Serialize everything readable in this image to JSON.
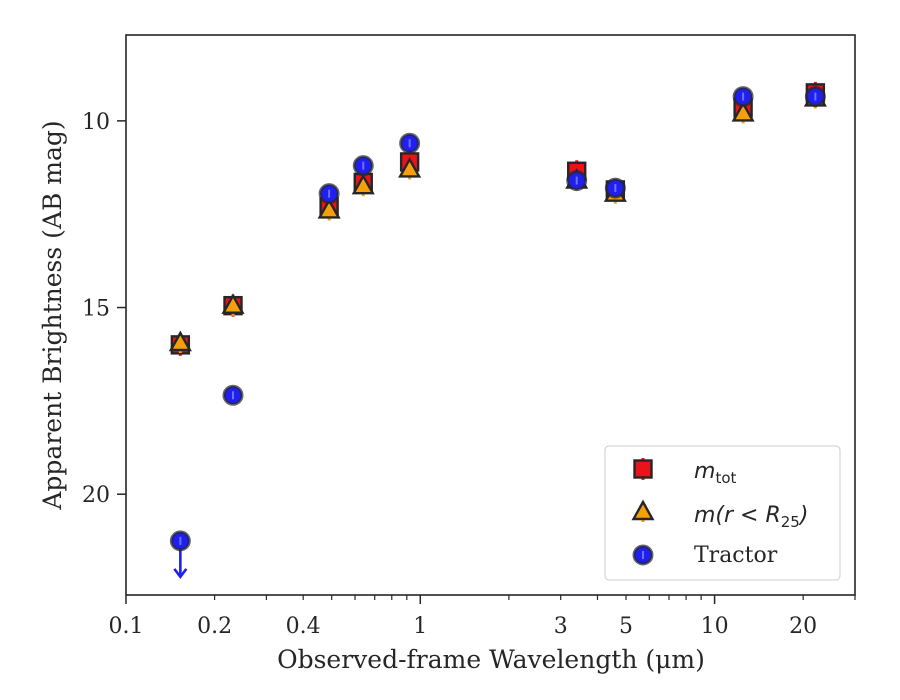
{
  "chart_data": {
    "type": "scatter",
    "xlabel": "Observed-frame Wavelength (μm)",
    "ylabel": "Apparent Brightness (AB mag)",
    "x_scale": "log",
    "xlim": [
      0.1,
      30
    ],
    "ylim": [
      22.7,
      7.7
    ],
    "y_inverted": true,
    "grid": false,
    "legend_position": "lower right",
    "x_tick_labels": [
      {
        "value": 0.1,
        "label": "0.1"
      },
      {
        "value": 0.2,
        "label": "0.2"
      },
      {
        "value": 0.4,
        "label": "0.4"
      },
      {
        "value": 1,
        "label": "1"
      },
      {
        "value": 3,
        "label": "3"
      },
      {
        "value": 5,
        "label": "5"
      },
      {
        "value": 10,
        "label": "10"
      },
      {
        "value": 20,
        "label": "20"
      }
    ],
    "y_tick_labels": [
      {
        "value": 10,
        "label": "10"
      },
      {
        "value": 15,
        "label": "15"
      },
      {
        "value": 20,
        "label": "20"
      }
    ],
    "series": [
      {
        "name": "m_tot",
        "marker": "square",
        "color": "#e8141a",
        "x": [
          0.153,
          0.231,
          0.49,
          0.64,
          0.92,
          3.4,
          4.6,
          12.5,
          22.0
        ],
        "y": [
          16.0,
          14.95,
          12.3,
          11.65,
          11.1,
          11.35,
          11.85,
          9.65,
          9.25
        ],
        "upper_limit": [
          false,
          false,
          false,
          false,
          false,
          false,
          false,
          false,
          false
        ]
      },
      {
        "name": "m(r < R25)",
        "marker": "triangle",
        "color": "#f5a00a",
        "x": [
          0.153,
          0.231,
          0.49,
          0.64,
          0.92,
          3.4,
          4.6,
          12.5,
          22.0
        ],
        "y": [
          15.95,
          14.95,
          12.4,
          11.75,
          11.3,
          11.6,
          11.95,
          9.8,
          9.4
        ],
        "upper_limit": [
          false,
          false,
          false,
          false,
          false,
          false,
          false,
          false,
          false
        ]
      },
      {
        "name": "Tractor",
        "marker": "circle",
        "color": "#1f1ff0",
        "x": [
          0.153,
          0.231,
          0.49,
          0.64,
          0.92,
          3.4,
          4.6,
          12.5,
          22.0
        ],
        "y": [
          21.25,
          17.35,
          11.95,
          11.2,
          10.6,
          11.6,
          11.8,
          9.35,
          9.35
        ],
        "upper_limit": [
          true,
          false,
          false,
          false,
          false,
          false,
          false,
          false,
          false
        ]
      }
    ],
    "legend": {
      "tot_base": "m",
      "tot_sub": "tot",
      "r25_pre": "m(r < R",
      "r25_sub": "25",
      "r25_post": ")",
      "tractor": "Tractor"
    }
  }
}
